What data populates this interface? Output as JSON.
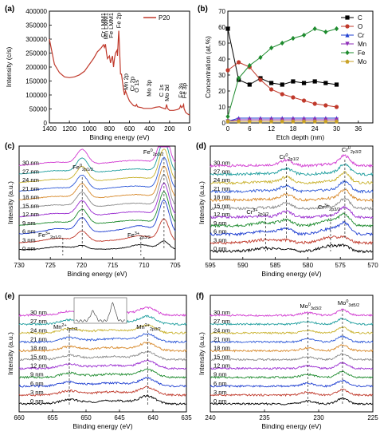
{
  "chart_data": [
    {
      "panel": "(a)",
      "type": "line",
      "xlabel": "Binding energy (eV)",
      "ylabel": "Intensity (c/s)",
      "xlim": [
        1400,
        0
      ],
      "ylim": [
        0,
        400000
      ],
      "xticks": [
        1400,
        1200,
        1000,
        800,
        600,
        400,
        200,
        0
      ],
      "yticks": [
        0,
        50000,
        100000,
        150000,
        200000,
        250000,
        300000,
        350000,
        400000
      ],
      "legend": [
        "P20"
      ],
      "legend_position": "top-right",
      "series": [
        {
          "name": "P20",
          "color": "#c0392b",
          "x": [
            1400,
            1350,
            1300,
            1250,
            1200,
            1150,
            1100,
            1050,
            1000,
            960,
            920,
            900,
            880,
            860,
            850,
            840,
            830,
            820,
            800,
            790,
            780,
            770,
            760,
            750,
            740,
            725,
            720,
            712,
            707,
            700,
            690,
            680,
            660,
            650,
            640,
            620,
            600,
            580,
            560,
            540,
            530,
            520,
            500,
            480,
            460,
            420,
            380,
            340,
            300,
            280,
            240,
            230,
            220,
            200,
            160,
            120,
            100,
            90,
            80,
            70,
            60,
            56,
            40,
            20,
            0
          ],
          "y": [
            300000,
            210000,
            180000,
            165000,
            162000,
            165000,
            172000,
            185000,
            210000,
            230000,
            255000,
            262000,
            270000,
            280000,
            270000,
            282000,
            250000,
            230000,
            240000,
            215000,
            228000,
            240000,
            200000,
            230000,
            250000,
            260000,
            240000,
            300000,
            330000,
            270000,
            175000,
            175000,
            120000,
            100000,
            115000,
            95000,
            78000,
            70000,
            62000,
            60000,
            66000,
            58000,
            56000,
            55000,
            52000,
            52000,
            52000,
            56000,
            58000,
            55000,
            50000,
            66000,
            52000,
            45000,
            45000,
            48000,
            52000,
            62000,
            55000,
            58000,
            66000,
            52000,
            38000,
            32000,
            28000
          ]
        }
      ],
      "annotations": [
        "Cr LMM1",
        "Mn LMM1",
        "Fe LMM1",
        "Fe 2p",
        "Mn 2p",
        "Cr 2p",
        "O 1s",
        "Mo 3p",
        "C 1s",
        "Mo 3d",
        "Fe 3s",
        "Fe 3p"
      ]
    },
    {
      "panel": "(b)",
      "type": "line",
      "xlabel": "Etch depth (nm)",
      "ylabel": "Concentration (at.%)",
      "xlim": [
        0,
        40
      ],
      "ylim": [
        0,
        70
      ],
      "xticks": [
        0,
        6,
        12,
        18,
        24,
        30,
        36
      ],
      "yticks": [
        0,
        10,
        20,
        30,
        40,
        50,
        60,
        70
      ],
      "legend_position": "top-right",
      "x": [
        0,
        3,
        6,
        9,
        12,
        15,
        18,
        21,
        24,
        27,
        30
      ],
      "series": [
        {
          "name": "C",
          "color": "#000000",
          "marker": "square",
          "values": [
            59,
            27,
            24,
            28,
            25,
            24,
            26,
            25,
            26,
            25,
            24
          ]
        },
        {
          "name": "O",
          "color": "#c0392b",
          "marker": "circle",
          "values": [
            33,
            38,
            35,
            27,
            21,
            18,
            16,
            14,
            12,
            11,
            10
          ]
        },
        {
          "name": "Cr",
          "color": "#1f3fd1",
          "marker": "triangle-up",
          "values": [
            1,
            3,
            3,
            3,
            3,
            3,
            3,
            3,
            3,
            3,
            3
          ]
        },
        {
          "name": "Mn",
          "color": "#8e2db8",
          "marker": "triangle-down",
          "values": [
            1,
            2,
            2,
            2,
            2,
            2,
            2,
            2,
            2,
            2,
            2
          ]
        },
        {
          "name": "Fe",
          "color": "#1e8b2e",
          "marker": "diamond",
          "values": [
            4,
            28,
            36,
            41,
            47,
            50,
            53,
            55,
            59,
            57,
            59
          ]
        },
        {
          "name": "Mo",
          "color": "#c9a227",
          "marker": "pentagon",
          "values": [
            1,
            1,
            1,
            1,
            1,
            1,
            1,
            1,
            1,
            1,
            1
          ]
        }
      ]
    },
    {
      "panel": "(c)",
      "type": "line",
      "xlabel": "Binding energy (eV)",
      "ylabel": "Intensity (a.u.)",
      "xlim": [
        730,
        705
      ],
      "xticks": [
        730,
        725,
        720,
        715,
        710,
        705
      ],
      "depth_labels": [
        "30 nm",
        "27 nm",
        "24 nm",
        "21 nm",
        "18 nm",
        "15 nm",
        "12 nm",
        "9 nm",
        "6 nm",
        "3 nm",
        "0 nm"
      ],
      "peaks": [
        {
          "label": "Fe⁰2p1/2",
          "x": 719.9
        },
        {
          "label": "Fe⁰2p3/2",
          "x": 706.8
        },
        {
          "label": "Fe³⁺2p1/2",
          "x": 723.0
        },
        {
          "label": "Fe³⁺2p3/2",
          "x": 710.5
        }
      ]
    },
    {
      "panel": "(d)",
      "type": "line",
      "xlabel": "Binding energy (eV)",
      "ylabel": "Intensity (a.u.)",
      "xlim": [
        595,
        570
      ],
      "xticks": [
        595,
        590,
        585,
        580,
        575,
        570
      ],
      "depth_labels": [
        "30 nm",
        "27 nm",
        "24 nm",
        "21 nm",
        "18 nm",
        "15 nm",
        "12 nm",
        "9 nm",
        "6 nm",
        "3 nm",
        "0 nm"
      ],
      "peaks": [
        {
          "label": "Cr⁰2p1/2",
          "x": 583.3
        },
        {
          "label": "Cr⁰2p3/2",
          "x": 574.3
        },
        {
          "label": "Cr³⁺2p1/2",
          "x": 586.5
        },
        {
          "label": "Cr³⁺2p3/2",
          "x": 576.5
        }
      ]
    },
    {
      "panel": "(e)",
      "type": "line",
      "xlabel": "Binding energy (eV)",
      "ylabel": "Intensity (a.u.)",
      "xlim": [
        660,
        635
      ],
      "xticks": [
        660,
        655,
        650,
        645,
        640,
        635
      ],
      "depth_labels": [
        "30 nm",
        "27 nm",
        "24 nm",
        "21 nm",
        "18 nm",
        "15 nm",
        "12 nm",
        "9 nm",
        "6 nm",
        "3 nm",
        "0 nm"
      ],
      "peaks": [
        {
          "label": "Mn²⁺2p1/2",
          "x": 652.5
        },
        {
          "label": "Mn²⁺2p3/2",
          "x": 640.8
        }
      ]
    },
    {
      "panel": "(f)",
      "type": "line",
      "xlabel": "Binding energy (eV)",
      "ylabel": "Intensity (a.u.)",
      "xlim": [
        240,
        225
      ],
      "xticks": [
        240,
        235,
        230,
        225
      ],
      "depth_labels": [
        "30 nm",
        "27 nm",
        "24 nm",
        "21 nm",
        "18 nm",
        "15 nm",
        "12 nm",
        "9 nm",
        "6 nm",
        "3 nm",
        "0 nm"
      ],
      "peaks": [
        {
          "label": "Mo⁰3d3/2",
          "x": 231.0
        },
        {
          "label": "Mo⁰3d5/2",
          "x": 227.8
        }
      ]
    }
  ],
  "spectra_colors": [
    "#d13bd1",
    "#1f9e9e",
    "#c9b22e",
    "#2f5ad8",
    "#d88a2c",
    "#8a8a8a",
    "#9a2ed0",
    "#1e8b2e",
    "#1f3fd1",
    "#c0392b",
    "#000000"
  ]
}
